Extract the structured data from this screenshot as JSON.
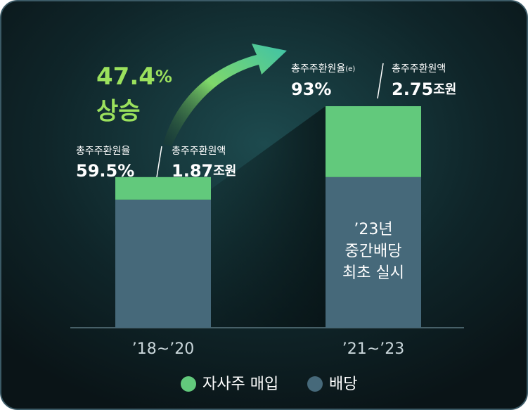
{
  "chart_data": {
    "type": "stacked-bar",
    "categories": [
      "’18~’20",
      "’21~’23"
    ],
    "series": [
      {
        "name": "자사주 매입",
        "color": "#62c97c",
        "values": [
          0.28,
          0.88
        ]
      },
      {
        "name": "배당",
        "color": "#46697a",
        "values": [
          1.59,
          1.87
        ]
      }
    ],
    "annotation": {
      "value": "47.4",
      "unit": "%",
      "label": "상승"
    },
    "bar_labels": [
      {
        "ratio_label": "총주주환원율",
        "ratio": "59.5",
        "ratio_unit": "%",
        "amount_label": "총주주환원액",
        "amount": "1.87",
        "amount_unit": "조원"
      },
      {
        "ratio_label": "총주주환원율",
        "ratio_suffix": "(e)",
        "ratio": "93",
        "ratio_unit": "%",
        "amount_label": "총주주환원액",
        "amount": "2.75",
        "amount_unit": "조원"
      }
    ],
    "bar_note": [
      "’23년",
      "중간배당",
      "최초 실시"
    ]
  }
}
